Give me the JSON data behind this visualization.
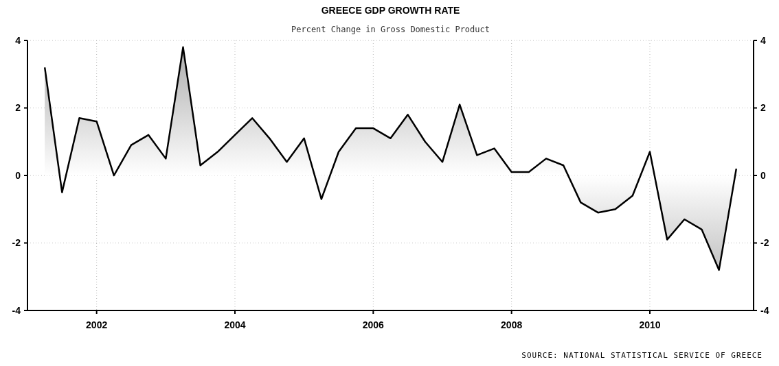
{
  "chart_data": {
    "type": "area",
    "title": "GREECE GDP GROWTH RATE",
    "subtitle": "Percent Change in Gross Domestic Product",
    "annotations": [
      "SOURCE: NATIONAL STATISTICAL SERVICE OF GREECE"
    ],
    "x": [
      2001.25,
      2001.5,
      2001.75,
      2002,
      2002.25,
      2002.5,
      2002.75,
      2003,
      2003.25,
      2003.5,
      2003.75,
      2004,
      2004.25,
      2004.5,
      2004.75,
      2005,
      2005.25,
      2005.5,
      2005.75,
      2006,
      2006.25,
      2006.5,
      2006.75,
      2007,
      2007.25,
      2007.5,
      2007.75,
      2008,
      2008.25,
      2008.5,
      2008.75,
      2009,
      2009.25,
      2009.5,
      2009.75,
      2010,
      2010.25,
      2010.5,
      2010.75,
      2011,
      2011.25
    ],
    "series": [
      {
        "color": "#000000",
        "values": [
          3.2,
          -0.5,
          1.7,
          1.6,
          0.0,
          0.9,
          1.2,
          0.5,
          3.8,
          0.3,
          0.7,
          1.2,
          1.7,
          1.1,
          0.4,
          1.1,
          -0.7,
          0.7,
          1.4,
          1.4,
          1.1,
          1.8,
          1.0,
          0.4,
          2.1,
          0.6,
          0.8,
          0.1,
          0.1,
          0.5,
          0.3,
          -0.8,
          -1.1,
          -1.0,
          -0.6,
          0.7,
          -1.9,
          -1.3,
          -1.6,
          -2.8,
          0.2
        ]
      }
    ],
    "xlim": [
      2001,
      2011.5
    ],
    "xticks": [
      2002,
      2004,
      2006,
      2008,
      2010
    ],
    "ylim": [
      -4,
      4
    ],
    "yticks": [
      -4,
      -2,
      0,
      2,
      4
    ],
    "y2lim": [
      -4,
      4
    ],
    "y2ticks": [
      -4,
      -2,
      0,
      2,
      4
    ],
    "grid": true,
    "line_style": "solid",
    "marker": "none"
  }
}
